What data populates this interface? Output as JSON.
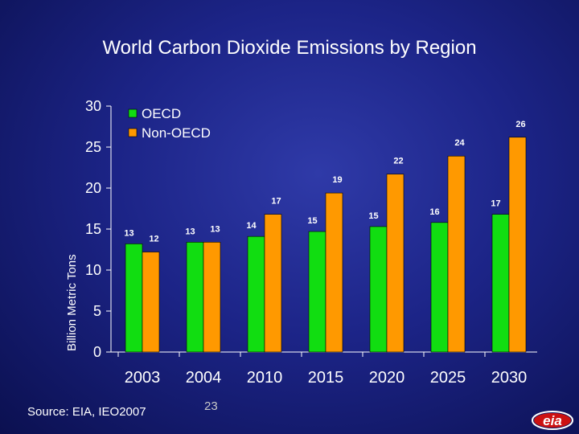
{
  "chart_data": {
    "type": "bar",
    "title": "World Carbon Dioxide Emissions by Region",
    "ylabel": "Billion Metric Tons",
    "xlabel": "",
    "ylim": [
      0,
      30
    ],
    "yticks": [
      "0",
      "5",
      "10",
      "15",
      "20",
      "25",
      "30"
    ],
    "categories": [
      "2003",
      "2004",
      "2010",
      "2015",
      "2020",
      "2025",
      "2030"
    ],
    "series": [
      {
        "name": "OECD",
        "color": "#11dd11",
        "values": [
          13.2,
          13.4,
          14.1,
          14.7,
          15.3,
          15.8,
          16.8
        ],
        "labels": [
          "13",
          "13",
          "14",
          "15",
          "15",
          "16",
          "17"
        ]
      },
      {
        "name": "Non-OECD",
        "color": "#ff9900",
        "values": [
          12.2,
          13.4,
          16.8,
          19.4,
          21.7,
          23.9,
          26.2
        ],
        "labels": [
          "12",
          "13",
          "17",
          "19",
          "22",
          "24",
          "26"
        ]
      }
    ],
    "legend_position": "top-left"
  },
  "footer": {
    "source": "Source:  EIA, IEO2007",
    "page_number": "23",
    "logo_text": "eia"
  }
}
